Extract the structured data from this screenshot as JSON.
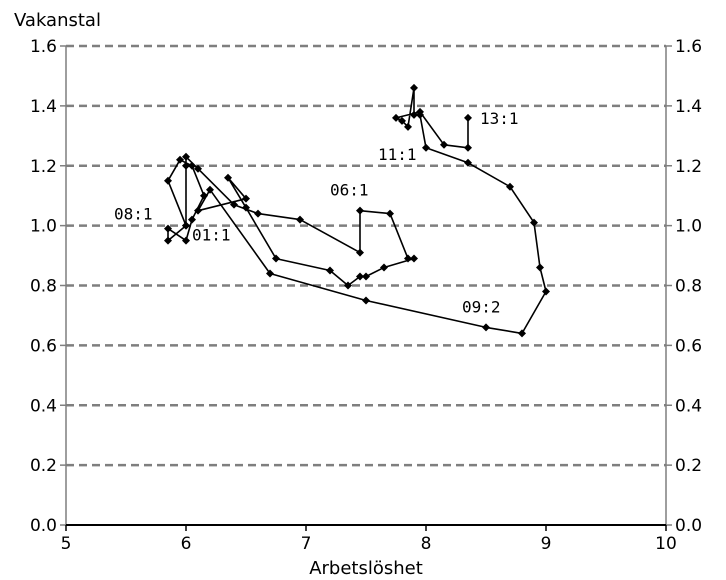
{
  "chart_data": {
    "type": "line",
    "ylabel": "Vakanstal",
    "xlabel": "Arbetslöshet",
    "xlim": [
      5,
      10
    ],
    "ylim": [
      0.0,
      1.6
    ],
    "x_ticks": [
      "5",
      "6",
      "7",
      "8",
      "9",
      "10"
    ],
    "x_tick_values": [
      5,
      6,
      7,
      8,
      9,
      10
    ],
    "y_ticks": [
      "0.0",
      "0.2",
      "0.4",
      "0.6",
      "0.8",
      "1.0",
      "1.2",
      "1.4",
      "1.6"
    ],
    "y_tick_values": [
      0.0,
      0.2,
      0.4,
      0.6,
      0.8,
      1.0,
      1.2,
      1.4,
      1.6
    ],
    "grid": "horizontal dashed",
    "series": [
      {
        "marker": "diamond",
        "color": "#000000",
        "points": [
          [
            6.0,
            1.0
          ],
          [
            5.85,
            0.95
          ],
          [
            5.85,
            0.99
          ],
          [
            6.0,
            0.95
          ],
          [
            6.05,
            1.02
          ],
          [
            6.15,
            1.1
          ],
          [
            6.05,
            1.2
          ],
          [
            5.95,
            1.22
          ],
          [
            5.85,
            1.15
          ],
          [
            6.0,
            1.0
          ],
          [
            6.0,
            1.2
          ],
          [
            6.0,
            1.23
          ],
          [
            6.1,
            1.19
          ],
          [
            6.4,
            1.07
          ],
          [
            6.6,
            1.04
          ],
          [
            6.95,
            1.02
          ],
          [
            7.45,
            0.91
          ],
          [
            7.45,
            1.05
          ],
          [
            7.7,
            1.04
          ],
          [
            7.85,
            0.89
          ],
          [
            7.9,
            0.89
          ],
          [
            7.65,
            0.86
          ],
          [
            7.5,
            0.83
          ],
          [
            7.45,
            0.83
          ],
          [
            7.35,
            0.8
          ],
          [
            7.2,
            0.85
          ],
          [
            6.75,
            0.89
          ],
          [
            6.5,
            1.06
          ],
          [
            6.35,
            1.16
          ],
          [
            6.5,
            1.09
          ],
          [
            6.1,
            1.05
          ],
          [
            6.2,
            1.12
          ],
          [
            6.7,
            0.84
          ],
          [
            7.5,
            0.75
          ],
          [
            8.5,
            0.66
          ],
          [
            8.8,
            0.64
          ],
          [
            9.0,
            0.78
          ],
          [
            8.95,
            0.86
          ],
          [
            8.9,
            1.01
          ],
          [
            8.7,
            1.13
          ],
          [
            8.35,
            1.21
          ],
          [
            8.0,
            1.26
          ],
          [
            7.95,
            1.37
          ],
          [
            7.9,
            1.37
          ],
          [
            7.9,
            1.46
          ],
          [
            7.85,
            1.33
          ],
          [
            7.8,
            1.35
          ],
          [
            7.75,
            1.36
          ],
          [
            7.95,
            1.38
          ],
          [
            8.15,
            1.27
          ],
          [
            8.35,
            1.26
          ],
          [
            8.35,
            1.36
          ]
        ]
      }
    ],
    "annotations": [
      {
        "text": "08:1",
        "x": 5.4,
        "y": 1.02
      },
      {
        "text": "01:1",
        "x": 6.05,
        "y": 0.95
      },
      {
        "text": "06:1",
        "x": 7.2,
        "y": 1.1
      },
      {
        "text": "11:1",
        "x": 7.6,
        "y": 1.22
      },
      {
        "text": "13:1",
        "x": 8.45,
        "y": 1.34
      },
      {
        "text": "09:2",
        "x": 8.3,
        "y": 0.71
      }
    ]
  }
}
